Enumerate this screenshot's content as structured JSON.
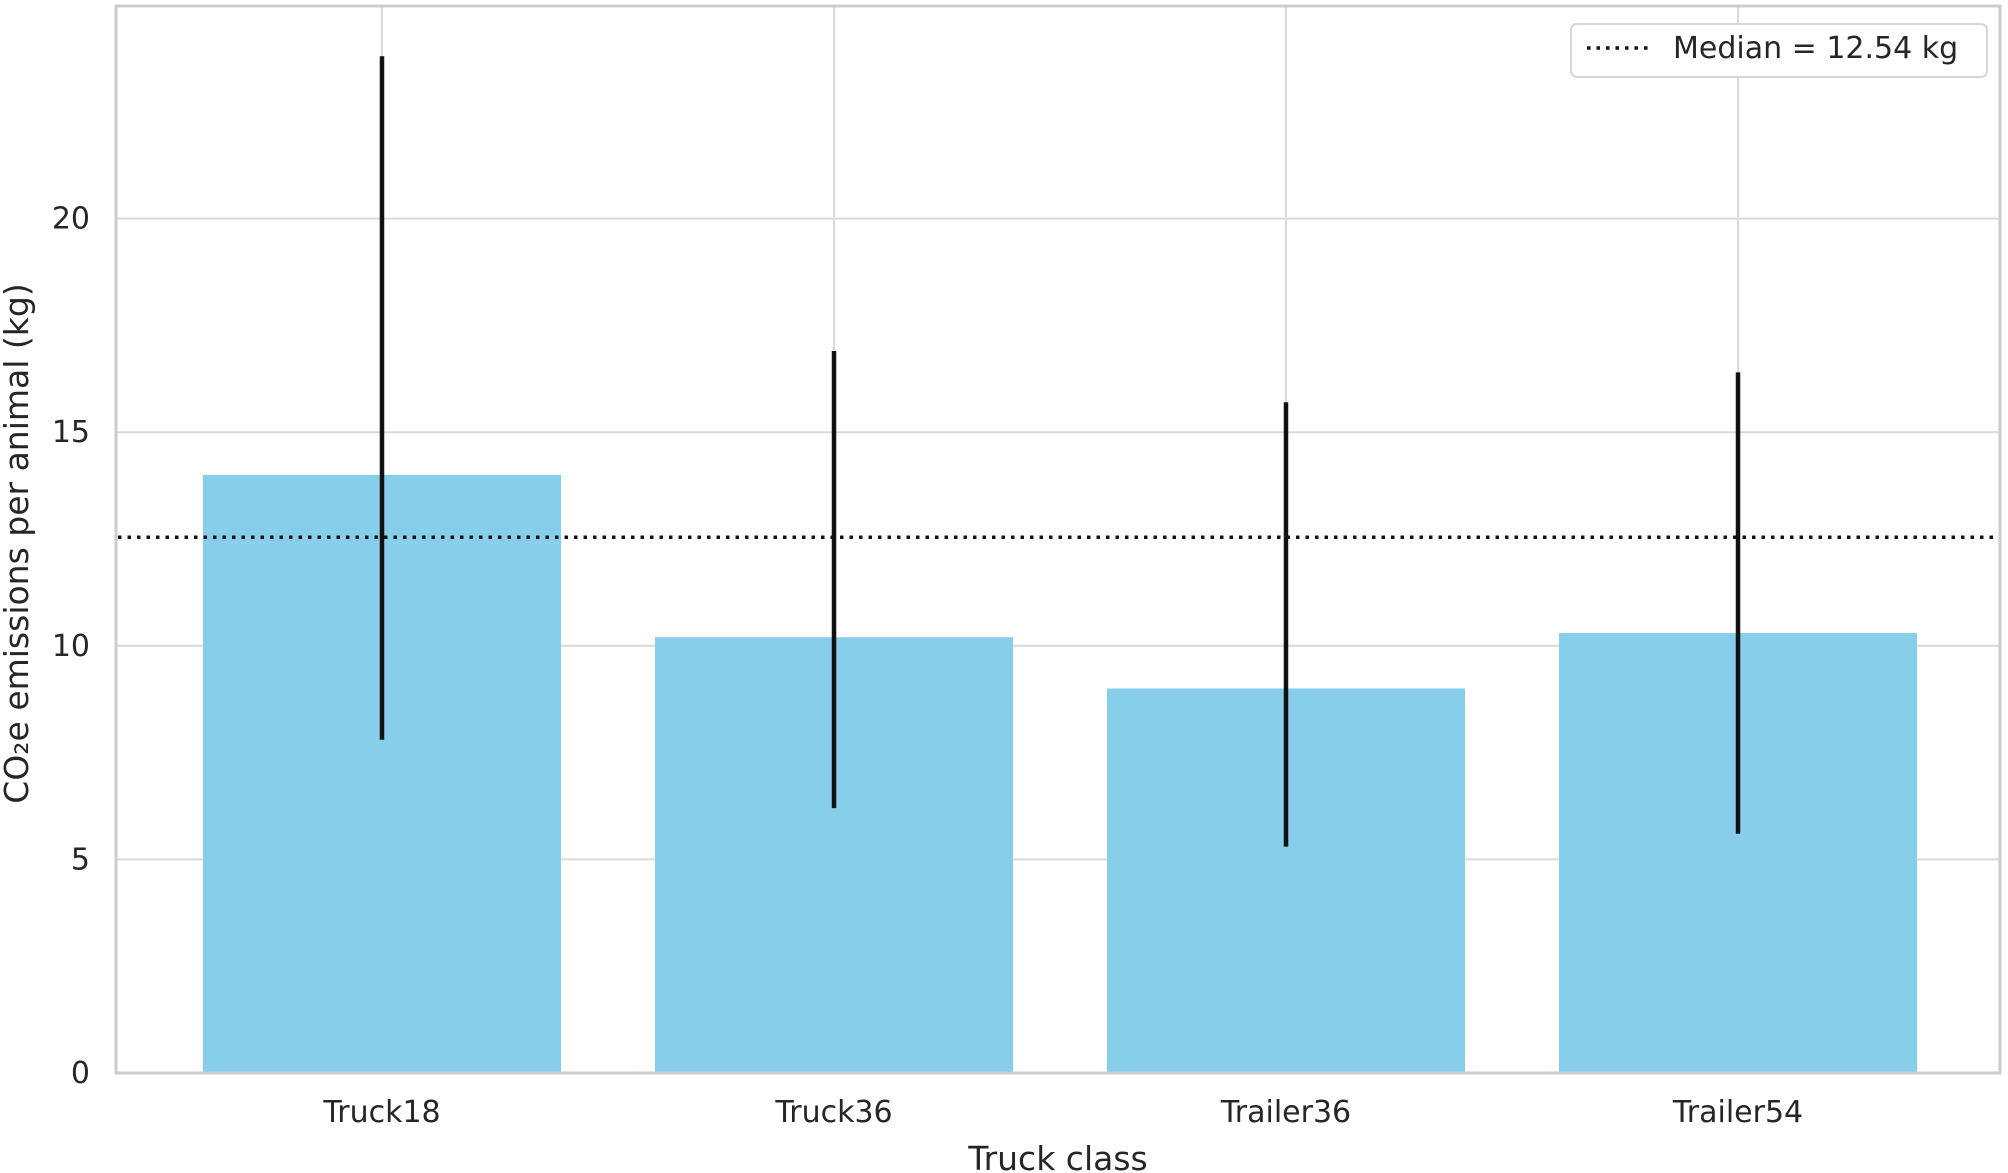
{
  "chart_data": {
    "type": "bar",
    "categories": [
      "Truck18",
      "Truck36",
      "Trailer36",
      "Trailer54"
    ],
    "values": [
      14.0,
      10.2,
      9.0,
      10.3
    ],
    "error_low": [
      7.8,
      6.2,
      5.3,
      5.6
    ],
    "error_high": [
      23.8,
      16.9,
      15.7,
      16.4
    ],
    "xlabel": "Truck class",
    "ylabel": "CO₂e emissions per animal (kg)",
    "ylim": [
      0,
      25
    ],
    "yticks": [
      "0",
      "5",
      "10",
      "15",
      "20"
    ],
    "median": {
      "value": 12.54,
      "label": "Median = 12.54 kg",
      "style": "dotted"
    },
    "legend_position": "top-right",
    "grid": true,
    "colors": {
      "bar": "#87ceeb",
      "error_bar": "#111111",
      "median_line": "#111111",
      "grid": "#d9d9d9",
      "frame": "#cccccc"
    }
  }
}
